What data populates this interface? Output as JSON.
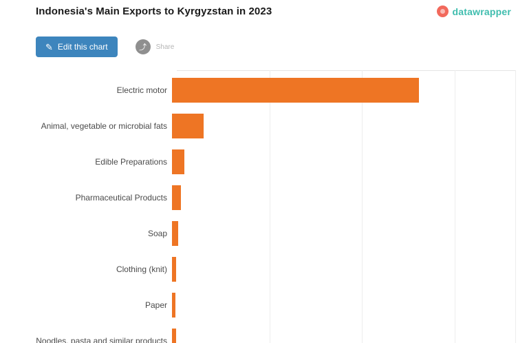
{
  "header": {
    "title": "Indonesia's Main Exports to Kyrgyzstan in 2023",
    "brand": {
      "name": "datawrapper",
      "icon": "datawrapper-logo",
      "icon_color": "#f2695c",
      "text_color": "#3fbdae"
    }
  },
  "toolbar": {
    "edit_button": {
      "label": "Edit this chart",
      "icon": "pencil-icon",
      "bg_color": "#3d85bd"
    },
    "share_button": {
      "label": "Share",
      "icon": "share-icon",
      "bg_color": "#8f8f8f"
    }
  },
  "chart_data": {
    "type": "bar",
    "orientation": "horizontal",
    "title": "Indonesia's Main Exports to Kyrgyzstan in 2023",
    "categories": [
      "Electric motor",
      "Animal, vegetable or microbial fats",
      "Edible Preparations",
      "Pharmaceutical Products",
      "Soap",
      "Clothing (knit)",
      "Paper",
      "Noodles, pasta and similar products"
    ],
    "values": [
      100,
      12.8,
      5.0,
      3.6,
      2.5,
      1.7,
      1.4,
      1.7
    ],
    "unit": "relative scale, largest bar = 100 (axis tick labels not visible in image)",
    "bar_color": "#ee7524",
    "grid": true,
    "gridline_interval_relative": 37.5,
    "axis_labels_visible": false,
    "xlabel": "",
    "ylabel": ""
  }
}
